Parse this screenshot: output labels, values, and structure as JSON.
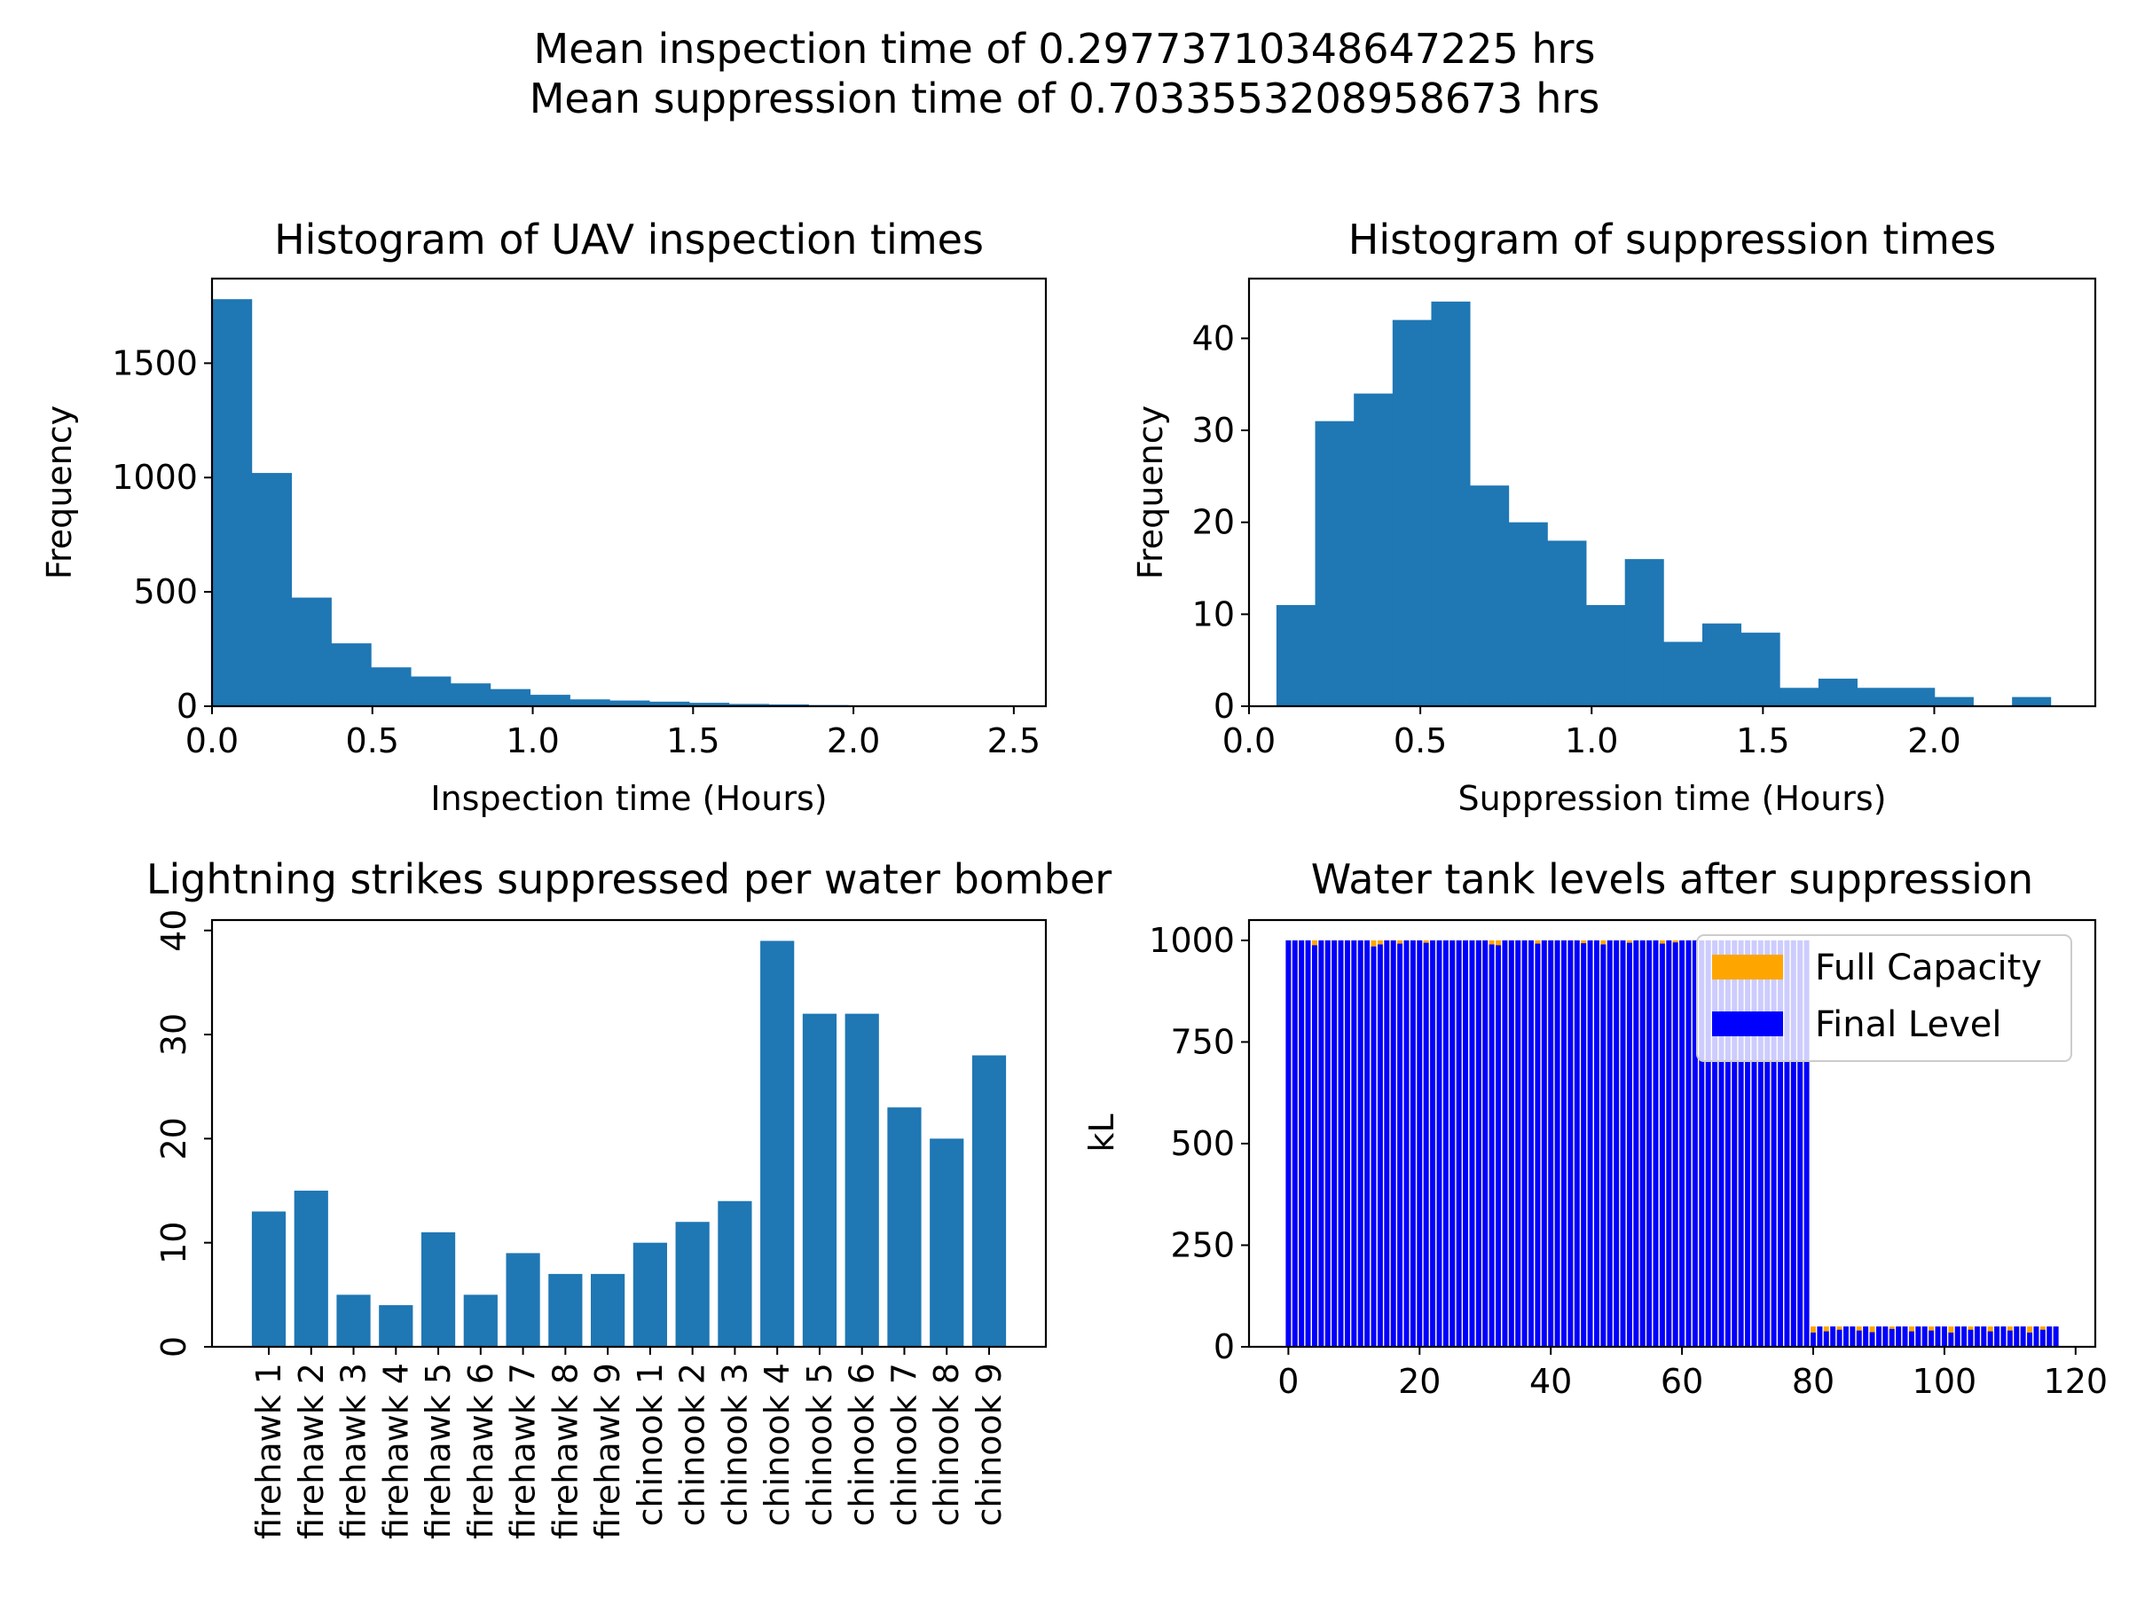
{
  "suptitle": [
    "Mean inspection time of 0.29773710348647225 hrs",
    "Mean suppression time of 0.7033553208958673 hrs"
  ],
  "colors": {
    "bar": "#1f77b4",
    "full_capacity": "#ffa500",
    "final_level": "#0000ff"
  },
  "chart_data": [
    {
      "type": "bar",
      "title": "Histogram of UAV inspection times",
      "xlabel": "Inspection time (Hours)",
      "ylabel": "Frequency",
      "xlim": [
        0,
        2.6
      ],
      "ylim": [
        0,
        1870
      ],
      "xticks": [
        0.0,
        0.5,
        1.0,
        1.5,
        2.0,
        2.5
      ],
      "xtick_labels": [
        "0.0",
        "0.5",
        "1.0",
        "1.5",
        "2.0",
        "2.5"
      ],
      "yticks": [
        0,
        500,
        1000,
        1500
      ],
      "ytick_labels": [
        "0",
        "500",
        "1000",
        "1500"
      ],
      "bin_edges": [
        0.0,
        0.124,
        0.248,
        0.372,
        0.496,
        0.62,
        0.744,
        0.868,
        0.992,
        1.116,
        1.24,
        1.364,
        1.488,
        1.612,
        1.736,
        1.86,
        1.984,
        2.108,
        2.232,
        2.356,
        2.48
      ],
      "values": [
        1780,
        1020,
        475,
        275,
        170,
        130,
        100,
        75,
        50,
        30,
        25,
        20,
        15,
        10,
        8,
        5,
        3,
        2,
        1,
        1
      ],
      "grid": false
    },
    {
      "type": "bar",
      "title": "Histogram of suppression times",
      "xlabel": "Suppression time (Hours)",
      "ylabel": "Frequency",
      "xlim": [
        0,
        2.47
      ],
      "ylim": [
        0,
        46.5
      ],
      "xticks": [
        0.0,
        0.5,
        1.0,
        1.5,
        2.0
      ],
      "xtick_labels": [
        "0.0",
        "0.5",
        "1.0",
        "1.5",
        "2.0"
      ],
      "yticks": [
        0,
        10,
        20,
        30,
        40
      ],
      "ytick_labels": [
        "0",
        "10",
        "20",
        "30",
        "40"
      ],
      "bin_edges": [
        0.08,
        0.193,
        0.306,
        0.419,
        0.532,
        0.645,
        0.758,
        0.871,
        0.984,
        1.097,
        1.21,
        1.323,
        1.436,
        1.549,
        1.662,
        1.775,
        1.888,
        2.001,
        2.114,
        2.227,
        2.34
      ],
      "values": [
        11,
        31,
        34,
        42,
        44,
        24,
        20,
        18,
        11,
        16,
        7,
        9,
        8,
        2,
        3,
        2,
        2,
        1,
        0,
        1
      ],
      "grid": false
    },
    {
      "type": "bar",
      "title": "Lightning strikes suppressed per water bomber",
      "xlabel": "",
      "ylabel": "",
      "ylim": [
        0,
        41
      ],
      "yticks": [
        0,
        10,
        20,
        30,
        40
      ],
      "ytick_labels": [
        "0",
        "10",
        "20",
        "30",
        "40"
      ],
      "categories": [
        "firehawk 1",
        "firehawk 2",
        "firehawk 3",
        "firehawk 4",
        "firehawk 5",
        "firehawk 6",
        "firehawk 7",
        "firehawk 8",
        "firehawk 9",
        "chinook 1",
        "chinook 2",
        "chinook 3",
        "chinook 4",
        "chinook 5",
        "chinook 6",
        "chinook 7",
        "chinook 8",
        "chinook 9"
      ],
      "values": [
        13,
        15,
        5,
        4,
        11,
        5,
        9,
        7,
        7,
        10,
        12,
        14,
        39,
        32,
        32,
        23,
        20,
        28
      ],
      "grid": false
    },
    {
      "type": "bar",
      "title": "Water tank levels after suppression",
      "xlabel": "",
      "ylabel": "kL",
      "xlim": [
        -6,
        123
      ],
      "ylim": [
        0,
        1050
      ],
      "xticks": [
        0,
        20,
        40,
        60,
        80,
        100,
        120
      ],
      "xtick_labels": [
        "0",
        "20",
        "40",
        "60",
        "80",
        "100",
        "120"
      ],
      "yticks": [
        0,
        250,
        500,
        750,
        1000
      ],
      "ytick_labels": [
        "0",
        "250",
        "500",
        "750",
        "1000"
      ],
      "n_large": 80,
      "n_small": 38,
      "large_capacity": 1000,
      "small_capacity": 50,
      "large_drops": {
        "4": 12,
        "13": 15,
        "14": 10,
        "17": 8,
        "21": 6,
        "31": 10,
        "32": 12,
        "38": 8,
        "45": 7,
        "48": 10,
        "52": 6,
        "57": 8,
        "59": 5
      },
      "small_drops": {
        "0": 15,
        "2": 12,
        "4": 8,
        "7": 10,
        "9": 14,
        "12": 6,
        "15": 12,
        "18": 10,
        "21": 15,
        "24": 8,
        "27": 12,
        "30": 10,
        "33": 15,
        "35": 8
      },
      "series": [
        {
          "name": "Full Capacity",
          "color": "#ffa500"
        },
        {
          "name": "Final Level",
          "color": "#0000ff"
        }
      ],
      "legend": "upper right",
      "grid": false
    }
  ]
}
